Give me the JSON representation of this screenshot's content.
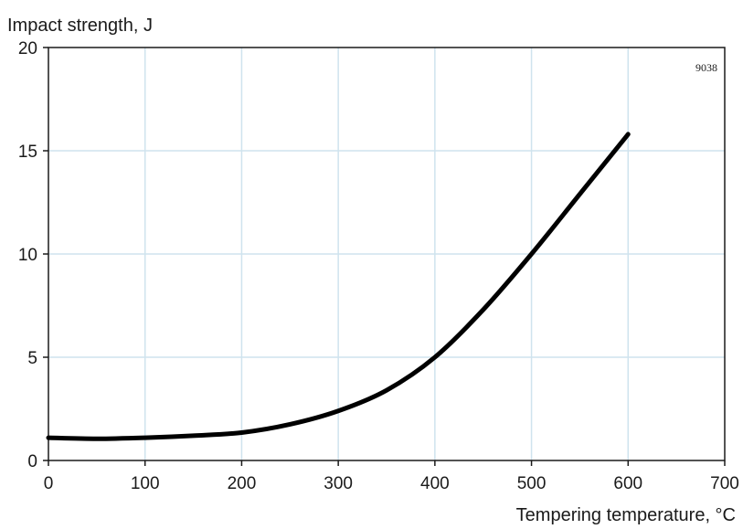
{
  "chart_data": {
    "type": "line",
    "ylabel": "Impact strength, J",
    "xlabel": "Tempering temperature, °C",
    "annotation": "9038",
    "xlim": [
      0,
      700
    ],
    "ylim": [
      0,
      20
    ],
    "x_ticks": [
      "0",
      "100",
      "200",
      "300",
      "400",
      "500",
      "600",
      "700"
    ],
    "y_ticks": [
      "0",
      "5",
      "10",
      "15",
      "20"
    ],
    "grid": true,
    "series": [
      {
        "x": [
          0,
          50,
          100,
          150,
          200,
          250,
          300,
          350,
          400,
          450,
          500,
          550,
          600
        ],
        "y": [
          1.1,
          1.05,
          1.1,
          1.2,
          1.35,
          1.75,
          2.4,
          3.4,
          5.0,
          7.3,
          10.0,
          12.9,
          15.8
        ]
      }
    ],
    "colors": {
      "line": "#000000",
      "grid": "#cfe3ee"
    }
  }
}
